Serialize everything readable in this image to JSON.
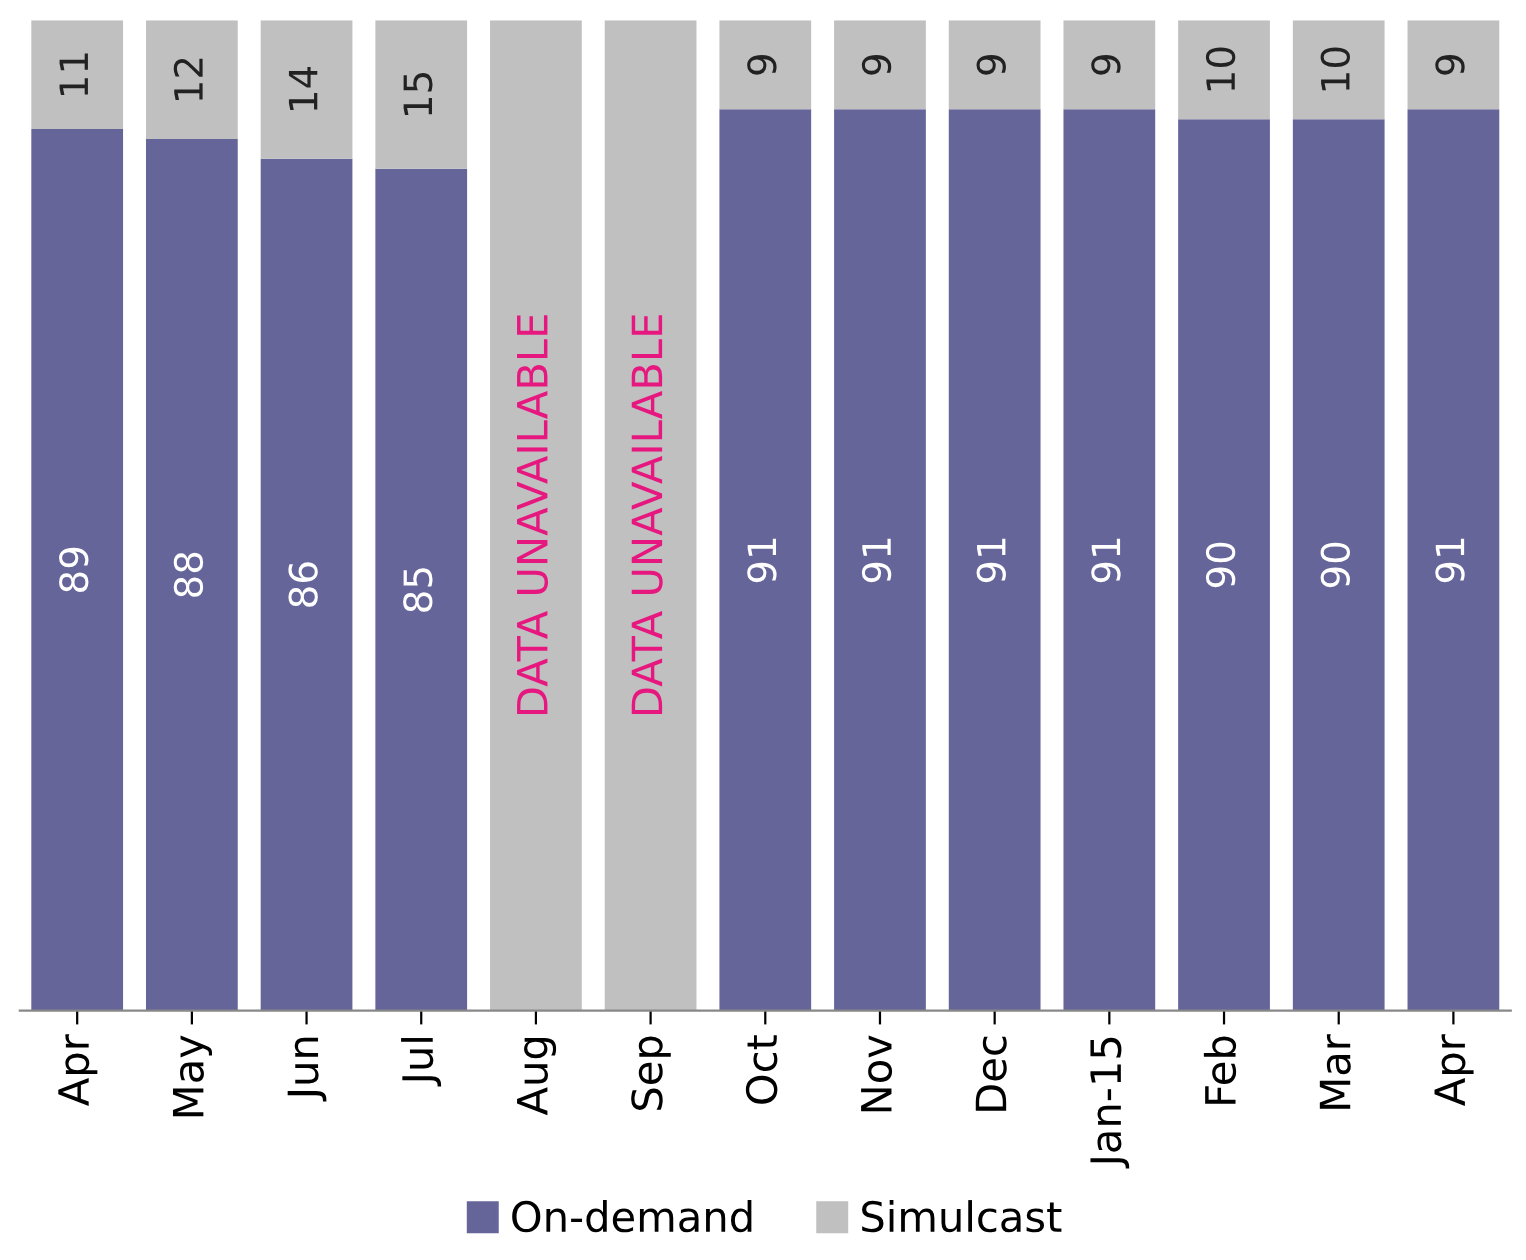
{
  "chart_data": {
    "type": "bar",
    "stacked": true,
    "categories": [
      "Apr",
      "May",
      "Jun",
      "Jul",
      "Aug",
      "Sep",
      "Oct",
      "Nov",
      "Dec",
      "Jan-15",
      "Feb",
      "Mar",
      "Apr"
    ],
    "series": [
      {
        "name": "On-demand",
        "color": "#65659a",
        "values": [
          89,
          88,
          86,
          85,
          null,
          null,
          91,
          91,
          91,
          91,
          90,
          90,
          91
        ],
        "value_labels": [
          "89",
          "88",
          "86",
          "85",
          null,
          null,
          "91",
          "91",
          "91",
          "91",
          "90",
          "90",
          "91"
        ]
      },
      {
        "name": "Simulcast",
        "color": "#c0c0c0",
        "values": [
          11,
          12,
          14,
          15,
          100,
          100,
          9,
          9,
          9,
          9,
          10,
          10,
          9
        ],
        "value_labels": [
          "11",
          "12",
          "14",
          "15",
          null,
          null,
          "9",
          "9",
          "9",
          "9",
          "10",
          "10",
          "9"
        ]
      }
    ],
    "ylim": [
      0,
      100
    ],
    "annotations": [
      "DATA UNAVAILABLE",
      "DATA UNAVAILABLE"
    ],
    "legend": "bottom",
    "grid": false,
    "tick_labels": "x"
  }
}
